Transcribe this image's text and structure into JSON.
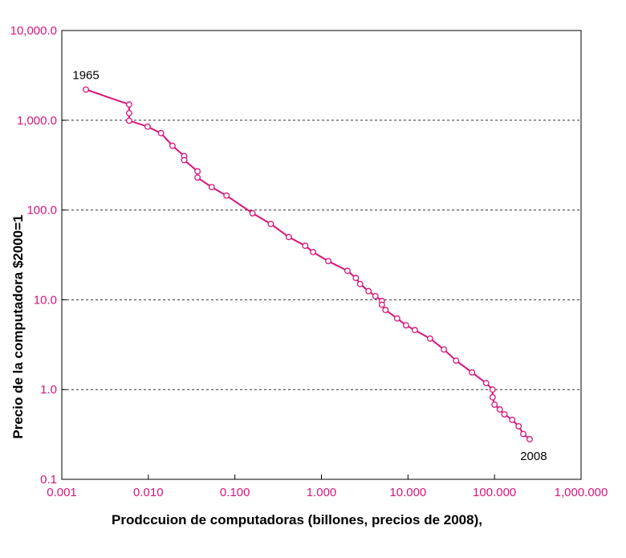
{
  "chart_data": {
    "type": "line",
    "title": "",
    "xlabel": "Prodccuion de computadoras (billones, precios de 2008),",
    "ylabel": "Precio de la computadora $2000=1",
    "xscale": "log",
    "yscale": "log",
    "xlim": [
      0.001,
      1000
    ],
    "ylim": [
      0.1,
      10000
    ],
    "x_tick_labels": [
      "0.001",
      "0.010",
      "0.100",
      "1.000",
      "10.000",
      "100.000",
      "1,000.000"
    ],
    "y_tick_labels": [
      "0.1",
      "1.0",
      "10.0",
      "100.0",
      "1,000.0",
      "10,000.0"
    ],
    "x_tick_values": [
      0.001,
      0.01,
      0.1,
      1,
      10,
      100,
      1000
    ],
    "y_tick_values": [
      0.1,
      1,
      10,
      100,
      1000,
      10000
    ],
    "grid": "horizontal-dashed",
    "colors": {
      "series": "#d6157b",
      "tick_labels": "#d6157b",
      "axes": "#000000"
    },
    "annotations": [
      {
        "text": "1965",
        "x": 0.0019,
        "y": 2200
      },
      {
        "text": "2008",
        "x": 260,
        "y": 0.27
      }
    ],
    "series": [
      {
        "marker": "open-circle",
        "points": [
          [
            0.0019,
            2200
          ],
          [
            0.006,
            1500
          ],
          [
            0.006,
            1200
          ],
          [
            0.006,
            990
          ],
          [
            0.0098,
            850
          ],
          [
            0.014,
            720
          ],
          [
            0.019,
            520
          ],
          [
            0.026,
            400
          ],
          [
            0.026,
            360
          ],
          [
            0.037,
            270
          ],
          [
            0.037,
            230
          ],
          [
            0.054,
            180
          ],
          [
            0.08,
            145
          ],
          [
            0.16,
            92
          ],
          [
            0.26,
            70
          ],
          [
            0.42,
            50
          ],
          [
            0.65,
            40
          ],
          [
            0.8,
            34
          ],
          [
            1.2,
            27
          ],
          [
            2.0,
            21
          ],
          [
            2.5,
            17.5
          ],
          [
            2.8,
            15
          ],
          [
            3.5,
            12.5
          ],
          [
            4.2,
            11
          ],
          [
            5.0,
            9.7
          ],
          [
            5.0,
            8.8
          ],
          [
            5.5,
            7.7
          ],
          [
            7.5,
            6.2
          ],
          [
            9.5,
            5.2
          ],
          [
            12,
            4.6
          ],
          [
            18,
            3.7
          ],
          [
            26,
            2.8
          ],
          [
            36,
            2.1
          ],
          [
            55,
            1.55
          ],
          [
            80,
            1.18
          ],
          [
            95,
            1.0
          ],
          [
            95,
            0.82
          ],
          [
            100,
            0.68
          ],
          [
            115,
            0.6
          ],
          [
            130,
            0.53
          ],
          [
            160,
            0.46
          ],
          [
            190,
            0.39
          ],
          [
            215,
            0.32
          ],
          [
            255,
            0.28
          ]
        ]
      }
    ]
  }
}
